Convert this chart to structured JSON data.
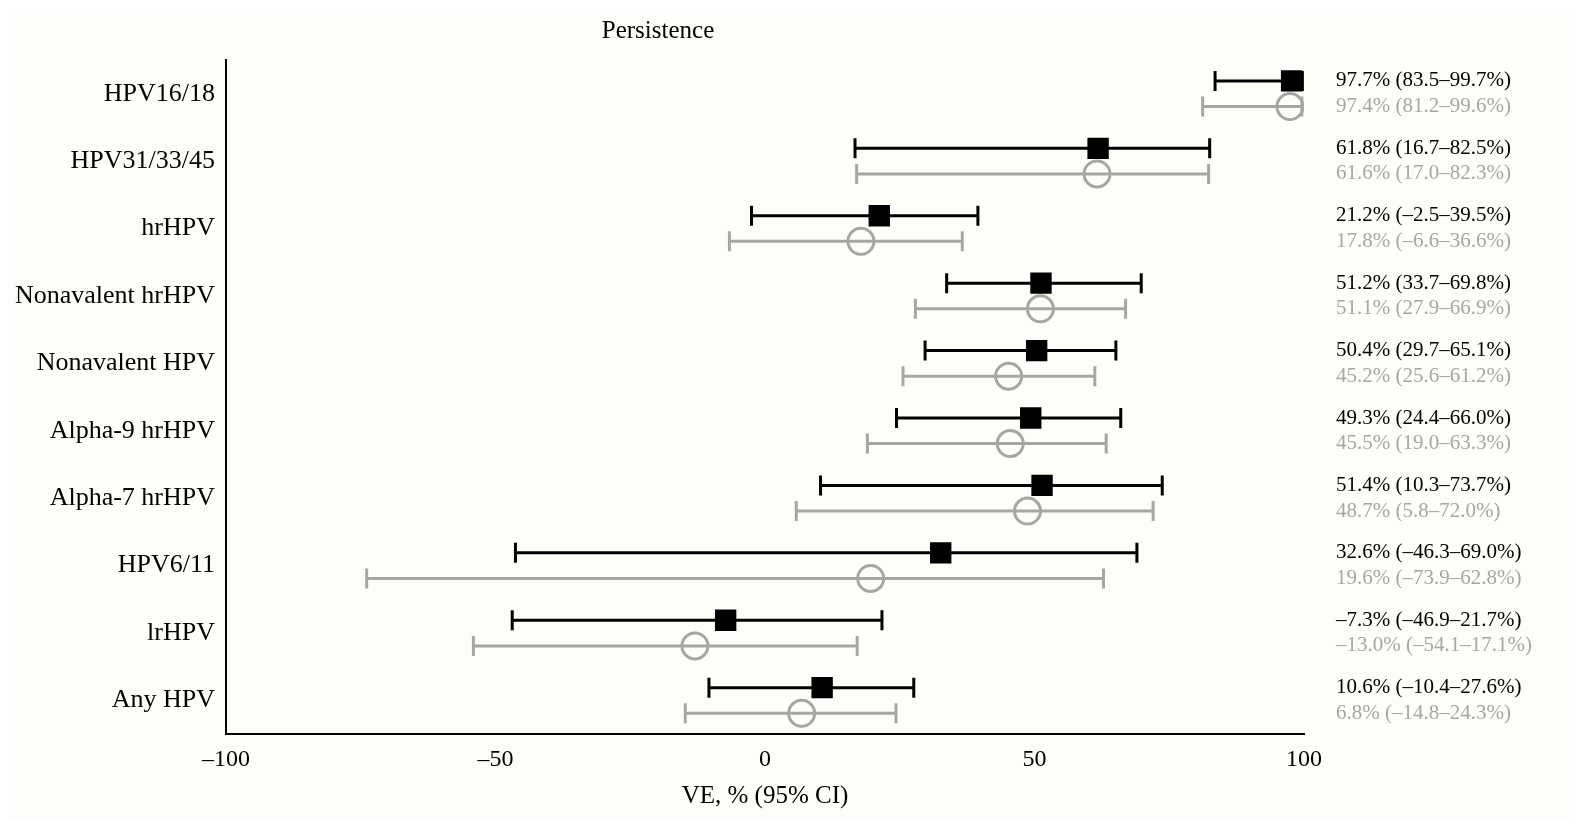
{
  "chart_data": {
    "type": "scatter",
    "orientation": "horizontal",
    "title": "Persistence",
    "xlabel": "VE, % (95% CI)",
    "categories": [
      "HPV16/18",
      "HPV31/33/45",
      "hrHPV",
      "Nonavalent hrHPV",
      "Nonavalent HPV",
      "Alpha-9 hrHPV",
      "Alpha-7 hrHPV",
      "HPV6/11",
      "lrHPV",
      "Any HPV"
    ],
    "series": [
      {
        "color": "#000000",
        "marker": "square",
        "values": [
          97.7,
          61.8,
          21.2,
          51.2,
          50.4,
          49.3,
          51.4,
          32.6,
          -7.3,
          10.6
        ],
        "errors": [
          [
            83.5,
            99.7
          ],
          [
            16.7,
            82.5
          ],
          [
            -2.5,
            39.5
          ],
          [
            33.7,
            69.8
          ],
          [
            29.7,
            65.1
          ],
          [
            24.4,
            66.0
          ],
          [
            10.3,
            73.7
          ],
          [
            -46.3,
            69.0
          ],
          [
            -46.9,
            21.7
          ],
          [
            -10.4,
            27.6
          ]
        ]
      },
      {
        "color": "#a6a6a6",
        "marker": "circle",
        "values": [
          97.4,
          61.6,
          17.8,
          51.1,
          45.2,
          45.5,
          48.7,
          19.6,
          -13.0,
          6.8
        ],
        "errors": [
          [
            81.2,
            99.6
          ],
          [
            17.0,
            82.3
          ],
          [
            -6.6,
            36.6
          ],
          [
            27.9,
            66.9
          ],
          [
            25.6,
            61.2
          ],
          [
            19.0,
            63.3
          ],
          [
            5.8,
            72.0
          ],
          [
            -73.9,
            62.8
          ],
          [
            -54.1,
            17.1
          ],
          [
            -14.8,
            24.3
          ]
        ]
      }
    ],
    "annotations": [
      "97.7% (83.5–99.7%)",
      "97.4% (81.2–99.6%)",
      "61.8% (16.7–82.5%)",
      "61.6% (17.0–82.3%)",
      "21.2% (–2.5–39.5%)",
      "17.8% (–6.6–36.6%)",
      "51.2% (33.7–69.8%)",
      "51.1% (27.9–66.9%)",
      "50.4% (29.7–65.1%)",
      "45.2% (25.6–61.2%)",
      "49.3% (24.4–66.0%)",
      "45.5% (19.0–63.3%)",
      "51.4% (10.3–73.7%)",
      "48.7% (5.8–72.0%)",
      "32.6% (–46.3–69.0%)",
      "19.6% (–73.9–62.8%)",
      "–7.3% (–46.9–21.7%)",
      "–13.0% (–54.1–17.1%)",
      "10.6% (–10.4–27.6%)",
      "6.8% (–14.8–24.3%)"
    ],
    "xlim": [
      -100,
      100
    ],
    "xticks": [
      {
        "value": -100,
        "label": "–100"
      },
      {
        "value": -50,
        "label": "–50"
      },
      0,
      50,
      100
    ],
    "grid": false,
    "legend": false
  }
}
